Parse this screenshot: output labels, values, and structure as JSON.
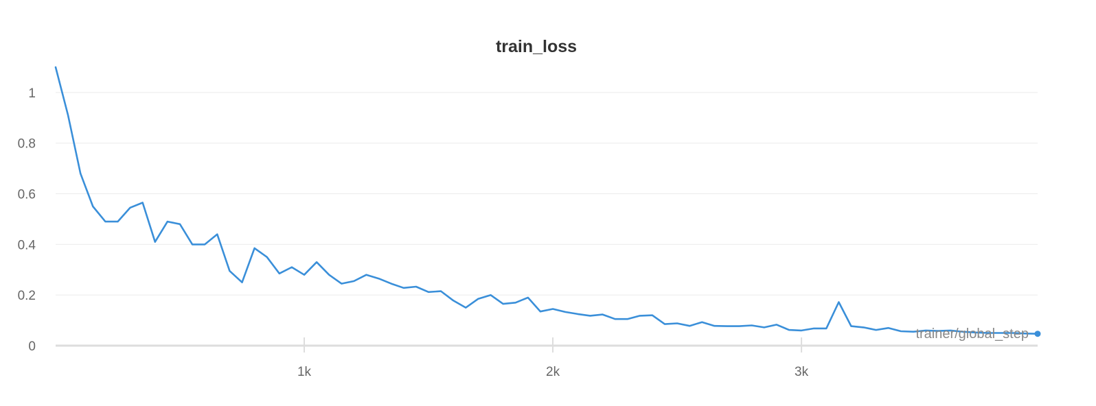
{
  "chart_data": {
    "type": "line",
    "title": "train_loss",
    "xlabel": "trainer/global_step",
    "ylabel": "",
    "xlim": [
      0,
      3950
    ],
    "ylim": [
      0,
      1.1
    ],
    "grid": true,
    "x_ticks": [
      {
        "value": 1000,
        "label": "1k"
      },
      {
        "value": 2000,
        "label": "2k"
      },
      {
        "value": 3000,
        "label": "3k"
      }
    ],
    "y_ticks": [
      {
        "value": 0,
        "label": "0"
      },
      {
        "value": 0.2,
        "label": "0.2"
      },
      {
        "value": 0.4,
        "label": "0.4"
      },
      {
        "value": 0.6,
        "label": "0.6"
      },
      {
        "value": 0.8,
        "label": "0.8"
      },
      {
        "value": 1,
        "label": "1"
      }
    ],
    "colors": {
      "line": "#3a8fd9"
    },
    "series": [
      {
        "x": [
          0,
          50,
          100,
          150,
          200,
          250,
          300,
          350,
          400,
          450,
          500,
          550,
          600,
          650,
          700,
          750,
          800,
          850,
          900,
          950,
          1000,
          1050,
          1100,
          1150,
          1200,
          1250,
          1300,
          1350,
          1400,
          1450,
          1500,
          1550,
          1600,
          1650,
          1700,
          1750,
          1800,
          1850,
          1900,
          1950,
          2000,
          2050,
          2100,
          2150,
          2200,
          2250,
          2300,
          2350,
          2400,
          2450,
          2500,
          2550,
          2600,
          2650,
          2700,
          2750,
          2800,
          2850,
          2900,
          2950,
          3000,
          3050,
          3100,
          3150,
          3200,
          3250,
          3300,
          3350,
          3400,
          3450,
          3500,
          3550,
          3600,
          3650,
          3700,
          3750,
          3800,
          3850,
          3900,
          3950
        ],
        "y": [
          1.1,
          0.91,
          0.68,
          0.55,
          0.49,
          0.49,
          0.545,
          0.565,
          0.41,
          0.49,
          0.48,
          0.4,
          0.4,
          0.44,
          0.295,
          0.25,
          0.385,
          0.35,
          0.285,
          0.31,
          0.28,
          0.33,
          0.28,
          0.245,
          0.255,
          0.28,
          0.265,
          0.245,
          0.228,
          0.233,
          0.212,
          0.215,
          0.178,
          0.15,
          0.185,
          0.2,
          0.165,
          0.17,
          0.19,
          0.135,
          0.145,
          0.133,
          0.125,
          0.118,
          0.123,
          0.105,
          0.105,
          0.118,
          0.12,
          0.085,
          0.088,
          0.078,
          0.093,
          0.078,
          0.077,
          0.077,
          0.08,
          0.072,
          0.083,
          0.062,
          0.06,
          0.068,
          0.068,
          0.172,
          0.077,
          0.072,
          0.062,
          0.07,
          0.057,
          0.055,
          0.06,
          0.058,
          0.06,
          0.055,
          0.052,
          0.05,
          0.05,
          0.05,
          0.048,
          0.047
        ]
      }
    ]
  }
}
